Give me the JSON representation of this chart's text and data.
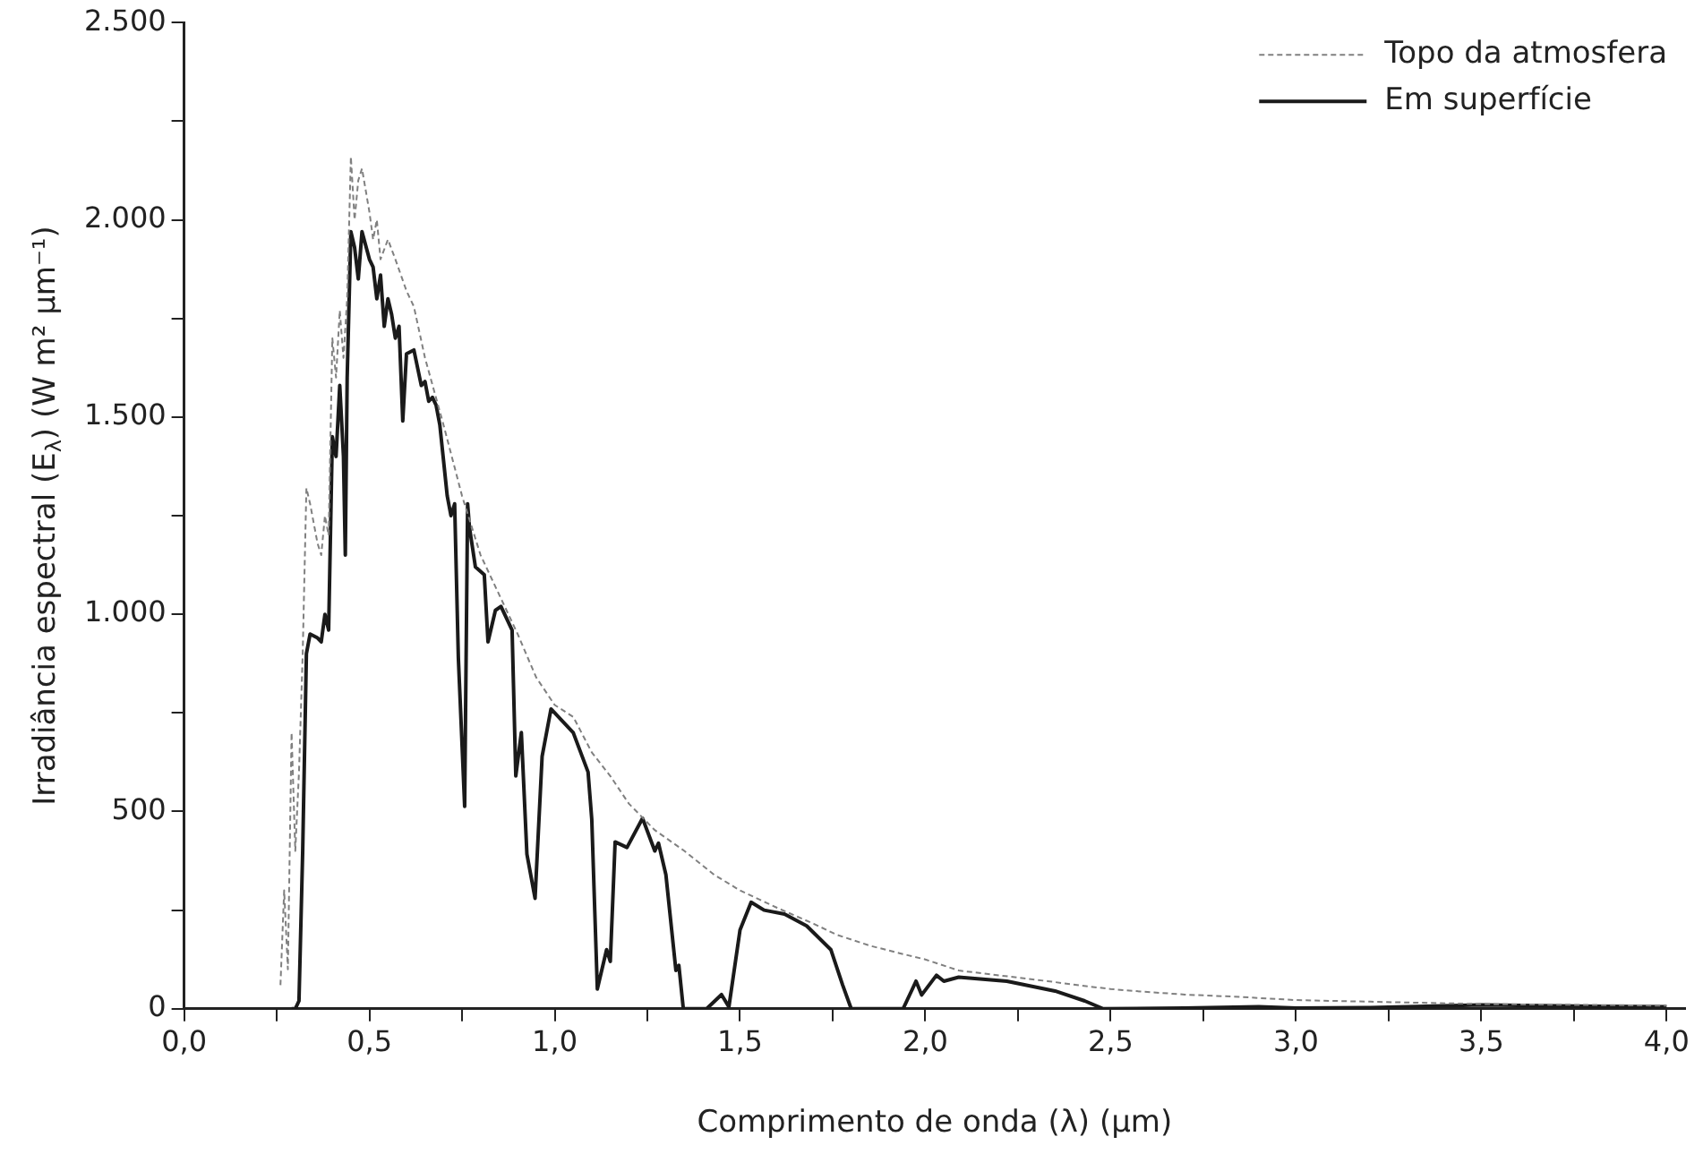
{
  "chart_data": {
    "type": "line",
    "xlabel": "Comprimento de onda (λ) (µm)",
    "ylabel": "Irradiância espectral (E$_{λ}$) (W m² µm⁻¹)",
    "xlim": [
      0,
      4.05
    ],
    "ylim": [
      0,
      2500
    ],
    "xticks": [
      {
        "value": 0,
        "label": "0,0"
      },
      {
        "value": 0.25,
        "label": null
      },
      {
        "value": 0.5,
        "label": "0,5"
      },
      {
        "value": 0.75,
        "label": null
      },
      {
        "value": 1,
        "label": "1,0"
      },
      {
        "value": 1.25,
        "label": null
      },
      {
        "value": 1.5,
        "label": "1,5"
      },
      {
        "value": 1.75,
        "label": null
      },
      {
        "value": 2,
        "label": "2,0"
      },
      {
        "value": 2.25,
        "label": null
      },
      {
        "value": 2.5,
        "label": "2,5"
      },
      {
        "value": 2.75,
        "label": null
      },
      {
        "value": 3,
        "label": "3,0"
      },
      {
        "value": 3.25,
        "label": null
      },
      {
        "value": 3.5,
        "label": "3,5"
      },
      {
        "value": 3.75,
        "label": null
      },
      {
        "value": 4,
        "label": "4,0"
      }
    ],
    "yticks": [
      0,
      {
        "value": 250,
        "label": null
      },
      500,
      {
        "value": 750,
        "label": null
      },
      {
        "value": 1000,
        "label": "1.000"
      },
      {
        "value": 1250,
        "label": null
      },
      {
        "value": 1500,
        "label": "1.500"
      },
      {
        "value": 1750,
        "label": null
      },
      {
        "value": 2000,
        "label": "2.000"
      },
      {
        "value": 2250,
        "label": null
      },
      {
        "value": 2500,
        "label": "2.500"
      }
    ],
    "grid": false,
    "legend": "top right",
    "marker": "none",
    "series": [
      {
        "name": "Topo da atmosfera",
        "color": "#808080",
        "line_style": "dashed",
        "x": [
          0.26,
          0.27,
          0.28,
          0.29,
          0.3,
          0.31,
          0.32,
          0.33,
          0.34,
          0.36,
          0.37,
          0.38,
          0.39,
          0.4,
          0.41,
          0.42,
          0.43,
          0.44,
          0.45,
          0.46,
          0.47,
          0.48,
          0.5,
          0.51,
          0.52,
          0.53,
          0.55,
          0.57,
          0.6,
          0.62,
          0.65,
          0.7,
          0.75,
          0.8,
          0.85,
          0.9,
          0.95,
          1,
          1.05,
          1.1,
          1.15,
          1.2,
          1.27,
          1.35,
          1.43,
          1.5,
          1.6,
          1.7,
          1.76,
          1.85,
          1.93,
          2.0,
          2.09,
          2.17,
          2.25,
          2.33,
          2.42,
          2.5,
          2.58,
          2.7,
          2.85,
          3.0,
          3.2,
          3.5,
          3.75,
          4.0
        ],
        "values": [
          60,
          300,
          100,
          700,
          400,
          600,
          900,
          1320,
          1280,
          1180,
          1150,
          1250,
          1200,
          1700,
          1600,
          1770,
          1650,
          1800,
          2160,
          2000,
          2100,
          2130,
          2020,
          1950,
          2000,
          1900,
          1950,
          1900,
          1820,
          1780,
          1650,
          1480,
          1300,
          1150,
          1050,
          950,
          840,
          770,
          740,
          650,
          590,
          520,
          453,
          400,
          340,
          300,
          256,
          215,
          188,
          160,
          141,
          125,
          97,
          88,
          79,
          70,
          59,
          50,
          44,
          36,
          30,
          22,
          18,
          12,
          10,
          8
        ]
      },
      {
        "name": "Em superfície",
        "color": "#1a1a1a",
        "line_style": "solid",
        "x": [
          0.29,
          0.3,
          0.31,
          0.32,
          0.33,
          0.34,
          0.36,
          0.37,
          0.38,
          0.39,
          0.4,
          0.41,
          0.42,
          0.43,
          0.435,
          0.44,
          0.45,
          0.46,
          0.47,
          0.48,
          0.5,
          0.51,
          0.52,
          0.53,
          0.54,
          0.55,
          0.56,
          0.57,
          0.58,
          0.59,
          0.6,
          0.62,
          0.64,
          0.65,
          0.66,
          0.67,
          0.68,
          0.69,
          0.71,
          0.72,
          0.73,
          0.74,
          0.757,
          0.765,
          0.77,
          0.786,
          0.81,
          0.82,
          0.84,
          0.855,
          0.885,
          0.895,
          0.91,
          0.925,
          0.947,
          0.966,
          0.99,
          1.02,
          1.05,
          1.09,
          1.1,
          1.115,
          1.14,
          1.15,
          1.163,
          1.195,
          1.237,
          1.27,
          1.28,
          1.3,
          1.327,
          1.335,
          1.347,
          1.41,
          1.45,
          1.47,
          1.5,
          1.53,
          1.565,
          1.62,
          1.68,
          1.745,
          1.777,
          1.8,
          1.94,
          1.975,
          1.99,
          2.03,
          2.05,
          2.09,
          2.22,
          2.35,
          2.43,
          2.48,
          2.7,
          2.9,
          3.0,
          3.2,
          3.5,
          3.75,
          4.0
        ],
        "values": [
          0,
          0,
          20,
          400,
          900,
          950,
          940,
          930,
          1000,
          960,
          1450,
          1400,
          1580,
          1400,
          1150,
          1600,
          1970,
          1930,
          1850,
          1970,
          1900,
          1880,
          1800,
          1860,
          1730,
          1800,
          1760,
          1700,
          1730,
          1490,
          1660,
          1670,
          1580,
          1590,
          1540,
          1550,
          1530,
          1480,
          1300,
          1250,
          1280,
          890,
          513,
          1280,
          1220,
          1120,
          1100,
          930,
          1010,
          1020,
          960,
          590,
          700,
          392,
          280,
          640,
          760,
          730,
          700,
          600,
          480,
          50,
          150,
          120,
          423,
          409,
          483,
          400,
          420,
          340,
          97,
          110,
          0,
          0,
          36,
          5,
          200,
          270,
          250,
          240,
          210,
          150,
          60,
          0,
          0,
          70,
          35,
          85,
          70,
          80,
          70,
          45,
          20,
          0,
          2,
          5,
          2,
          3,
          10,
          7,
          5
        ]
      }
    ]
  }
}
